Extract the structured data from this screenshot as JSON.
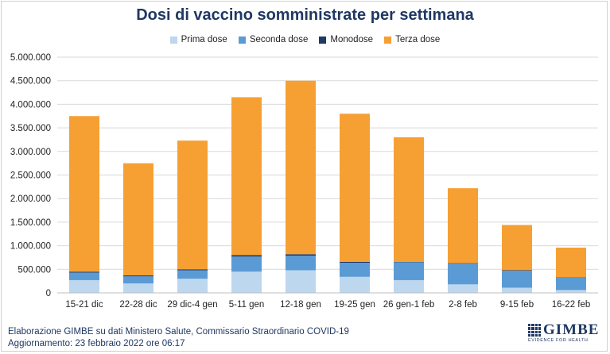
{
  "title": "Dosi di vaccino somministrate per settimana",
  "footer": {
    "line1": "Elaborazione GIMBE su dati Ministero Salute, Commissario Straordinario COVID-19",
    "line2": "Aggiornamento: 23 febbraio 2022 ore 06:17"
  },
  "logo": {
    "name": "GIMBE",
    "tagline": "EVIDENCE FOR HEALTH"
  },
  "colors": {
    "prima": "#bdd7ee",
    "seconda": "#5b9bd5",
    "monodose": "#1f3864",
    "terza": "#f6a033",
    "grid": "#d9d9d9"
  },
  "chart_data": {
    "type": "bar",
    "stacked": true,
    "title": "Dosi di vaccino somministrate per settimana",
    "categories": [
      "15-21 dic",
      "22-28 dic",
      "29 dic-4 gen",
      "5-11 gen",
      "12-18 gen",
      "19-25 gen",
      "26 gen-1 feb",
      "2-8 feb",
      "9-15 feb",
      "16-22 feb"
    ],
    "series": [
      {
        "name": "Prima dose",
        "color": "#bdd7ee",
        "values": [
          270000,
          200000,
          300000,
          450000,
          480000,
          340000,
          270000,
          180000,
          110000,
          60000
        ]
      },
      {
        "name": "Seconda dose",
        "color": "#5b9bd5",
        "values": [
          160000,
          150000,
          180000,
          320000,
          310000,
          300000,
          380000,
          440000,
          360000,
          270000
        ]
      },
      {
        "name": "Monodose",
        "color": "#1f3864",
        "values": [
          20000,
          20000,
          20000,
          30000,
          30000,
          20000,
          10000,
          10000,
          10000,
          5000
        ]
      },
      {
        "name": "Terza dose",
        "color": "#f6a033",
        "values": [
          3300000,
          2380000,
          2730000,
          3350000,
          3680000,
          3140000,
          2640000,
          1590000,
          960000,
          625000
        ]
      }
    ],
    "ylim": [
      0,
      5000000
    ],
    "yticks": [
      "0",
      "500.000",
      "1.000.000",
      "1.500.000",
      "2.000.000",
      "2.500.000",
      "3.000.000",
      "3.500.000",
      "4.000.000",
      "4.500.000",
      "5.000.000"
    ],
    "grid": true,
    "legend": "top-center"
  }
}
